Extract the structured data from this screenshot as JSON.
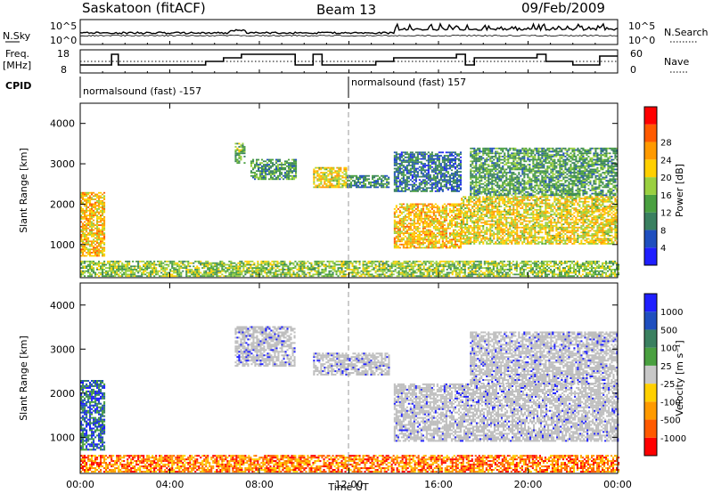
{
  "header": {
    "station": "Saskatoon (fitACF)",
    "beam": "Beam 13",
    "date": "09/Feb/2009"
  },
  "panels": {
    "nsky": {
      "left_label": "N.Sky",
      "right_label": "N.Search",
      "axis_top": "10^5",
      "axis_bottom": "10^0"
    },
    "freq": {
      "left_label": "Freq.",
      "left_unit": "[MHz]",
      "left_ticks": [
        "18",
        "8"
      ],
      "right_label": "Nave",
      "right_ticks": [
        "60",
        "0"
      ]
    },
    "cpid": {
      "label": "CPID",
      "segments": [
        "normalsound (fast) -157",
        "normalsound (fast) 157"
      ]
    }
  },
  "colors": {
    "power": [
      "#1f1fff",
      "#1f4fbf",
      "#3a8060",
      "#4aa040",
      "#9ad040",
      "#ffd000",
      "#ff9a00",
      "#ff5a00",
      "#ff0000"
    ],
    "velocity": [
      "#ff0000",
      "#ff5a00",
      "#ff9a00",
      "#ffd000",
      "#c8c8c8",
      "#4aa040",
      "#3a8060",
      "#1f4fbf",
      "#1f1fff"
    ],
    "ground_scatter": "#bebebe"
  },
  "chart_data": [
    {
      "type": "heatmap",
      "name": "power",
      "ylabel": "Slant Range [km]",
      "yticks": [
        1000,
        2000,
        3000,
        4000
      ],
      "ylim": [
        180,
        4500
      ],
      "colorbar_label": "Power [dB]",
      "colorbar_ticks": [
        4,
        8,
        12,
        16,
        20,
        24,
        28
      ],
      "colorbar_range": [
        0,
        30
      ],
      "regions": [
        {
          "t0": 0.0,
          "t1": 1.1,
          "r0": 700,
          "r1": 2300,
          "level": 20
        },
        {
          "t0": 6.9,
          "t1": 7.3,
          "r0": 3000,
          "r1": 3500,
          "level": 12
        },
        {
          "t0": 7.6,
          "t1": 9.6,
          "r0": 2600,
          "r1": 3100,
          "level": 10
        },
        {
          "t0": 10.4,
          "t1": 11.9,
          "r0": 2400,
          "r1": 2900,
          "level": 18
        },
        {
          "t0": 11.9,
          "t1": 13.8,
          "r0": 2400,
          "r1": 2700,
          "level": 8
        },
        {
          "t0": 14.0,
          "t1": 17.0,
          "r0": 2300,
          "r1": 3300,
          "level": 6
        },
        {
          "t0": 14.0,
          "t1": 17.0,
          "r0": 900,
          "r1": 2000,
          "level": 20
        },
        {
          "t0": 17.0,
          "t1": 24.0,
          "r0": 1000,
          "r1": 2200,
          "level": 18
        },
        {
          "t0": 17.4,
          "t1": 24.0,
          "r0": 2200,
          "r1": 3400,
          "level": 10
        },
        {
          "t0": 0.0,
          "t1": 24.0,
          "r0": 200,
          "r1": 600,
          "level": 14
        }
      ]
    },
    {
      "type": "heatmap",
      "name": "velocity",
      "ylabel": "Slant Range [km]",
      "yticks": [
        1000,
        2000,
        3000,
        4000
      ],
      "ylim": [
        180,
        4500
      ],
      "colorbar_label": "Velocity [m s⁻¹]",
      "colorbar_ticks": [
        "1000",
        "500",
        "100",
        "25",
        "-25",
        "-100",
        "-500",
        "-1000"
      ],
      "xlabel": "Time UT",
      "xticks": [
        "00:00",
        "04:00",
        "08:00",
        "12:00",
        "16:00",
        "20:00",
        "00:00"
      ],
      "xlim": [
        0,
        24
      ],
      "regions": [
        {
          "t0": 0.0,
          "t1": 1.1,
          "r0": 700,
          "r1": 2300,
          "level": 100
        },
        {
          "t0": 6.9,
          "t1": 9.6,
          "r0": 2600,
          "r1": 3500,
          "level": 0
        },
        {
          "t0": 10.4,
          "t1": 13.8,
          "r0": 2400,
          "r1": 2900,
          "level": 0
        },
        {
          "t0": 14.0,
          "t1": 24.0,
          "r0": 900,
          "r1": 2200,
          "level": 0
        },
        {
          "t0": 17.4,
          "t1": 24.0,
          "r0": 2200,
          "r1": 3400,
          "level": 0
        },
        {
          "t0": 0.0,
          "t1": 24.0,
          "r0": 200,
          "r1": 600,
          "level": -100
        }
      ]
    }
  ]
}
